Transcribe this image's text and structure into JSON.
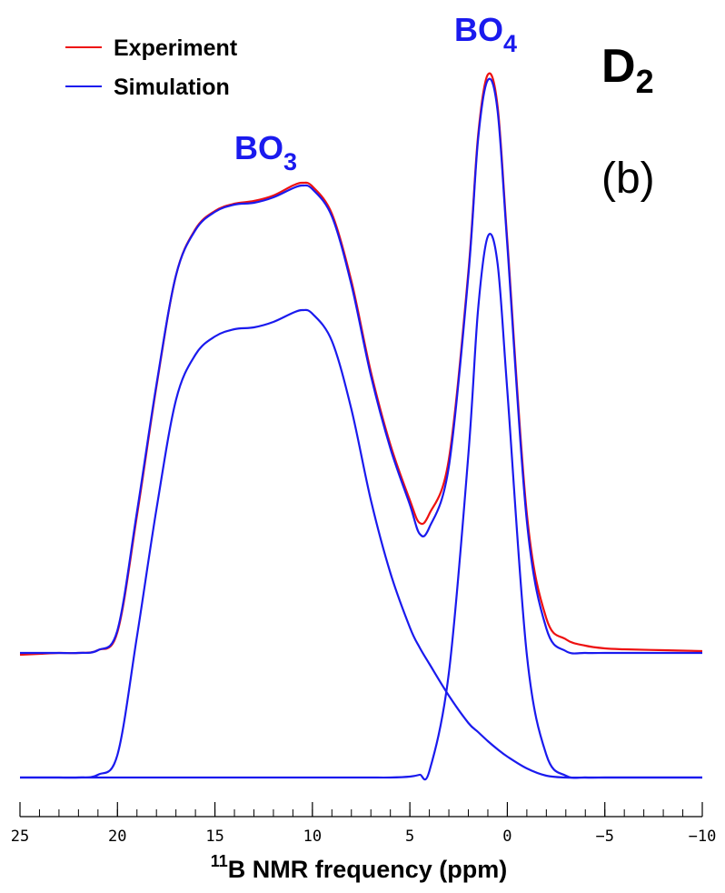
{
  "chart_data": {
    "type": "line",
    "x": [
      25,
      24,
      23,
      22,
      21,
      20,
      19,
      18,
      17,
      16,
      15,
      14,
      13,
      12,
      11,
      10.5,
      10,
      9,
      8,
      7,
      6,
      5,
      4.5,
      4,
      3,
      2,
      1.5,
      1,
      0.5,
      0,
      -1,
      -2,
      -3,
      -4,
      -5,
      -6,
      -8,
      -10
    ],
    "series": [
      {
        "name": "Experiment",
        "color": "#ee1111",
        "values": [
          135,
          136,
          137,
          137,
          140,
          160,
          288,
          430,
          552,
          603,
          623,
          631,
          634,
          640,
          651,
          654,
          650,
          620,
          546,
          446,
          366,
          305,
          280,
          290,
          350,
          556,
          706,
          773,
          738,
          590,
          290,
          175,
          152,
          145,
          142,
          141,
          140,
          139
        ]
      },
      {
        "name": "Simulation",
        "color": "#1a1aee",
        "values": [
          137,
          137,
          137,
          137,
          140,
          162,
          292,
          432,
          552,
          602,
          622,
          630,
          632,
          638,
          648,
          651,
          647,
          617,
          542,
          442,
          362,
          300,
          268,
          275,
          342,
          552,
          702,
          767,
          733,
          585,
          282,
          164,
          139,
          137,
          137,
          137,
          137,
          137
        ]
      },
      {
        "color": "#1a1aee",
        "values": [
          0,
          0,
          0,
          0,
          3,
          25,
          155,
          295,
          415,
          465,
          485,
          493,
          495,
          501,
          511,
          514,
          510,
          480,
          405,
          305,
          225,
          165,
          143,
          125,
          90,
          60,
          50,
          40,
          31,
          23,
          10,
          2,
          0,
          0,
          0,
          0,
          0,
          0
        ]
      },
      {
        "color": "#1a1aee",
        "values": [
          0,
          0,
          0,
          0,
          0,
          0,
          0,
          0,
          0,
          0,
          0,
          0,
          0,
          0,
          0,
          0,
          0,
          0,
          0,
          0,
          0,
          1,
          3,
          7,
          115,
          355,
          515,
          595,
          565,
          425,
          135,
          25,
          2,
          0,
          0,
          0,
          0,
          0
        ]
      }
    ],
    "xlim": [
      25,
      -10
    ],
    "ylim": [
      0,
      800
    ],
    "xticks": [
      25,
      20,
      15,
      10,
      5,
      0,
      {
        "value": -5,
        "label": "−5"
      },
      {
        "value": -10,
        "label": "−10"
      }
    ],
    "x_minor_step": 1,
    "xlabel": {
      "sup": "11",
      "text": "B NMR frequency (ppm)"
    },
    "annotations": [
      {
        "text": "BO",
        "sub": "3"
      },
      {
        "text": "BO",
        "sub": "4"
      }
    ],
    "annotation_color": "#1a1aee",
    "panel_label": {
      "text": "D",
      "sub": "2"
    },
    "subplot_label": "(b)",
    "legend": "upper left"
  }
}
